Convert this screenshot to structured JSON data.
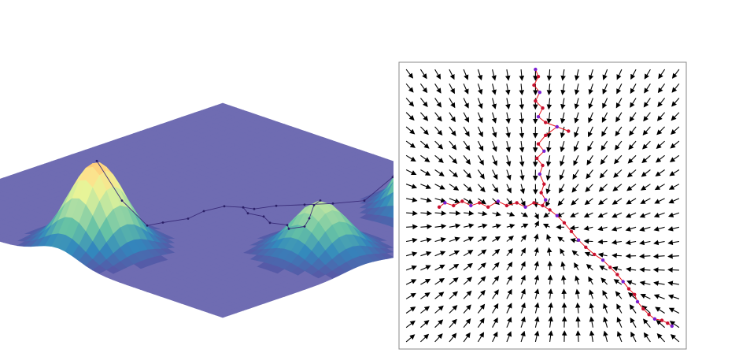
{
  "chart_data": [
    {
      "type": "surface",
      "title": "",
      "colormap": [
        "#5e4fa2",
        "#3288bd",
        "#66c2a5",
        "#abdda4",
        "#e6f598",
        "#fee08b",
        "#fdae61",
        "#f46d43",
        "#d53e4f",
        "#9e0142"
      ],
      "surface_color": "#6f6cb2",
      "grid": false,
      "axes_visible": false,
      "x_range": [
        -1,
        1
      ],
      "y_range": [
        -1,
        1
      ],
      "peaks": [
        {
          "name": "top-left",
          "x": -0.75,
          "y": -0.05,
          "amplitude": 0.62,
          "width": 0.13
        },
        {
          "name": "bottom-left",
          "x": -0.1,
          "y": 0.72,
          "amplitude": 0.38,
          "width": 0.13
        },
        {
          "name": "right",
          "x": 0.7,
          "y": 0.7,
          "amplitude": 1.0,
          "width": 0.13
        }
      ],
      "path": [
        [
          -0.1,
          0.72
        ],
        [
          -0.06,
          0.64
        ],
        [
          -0.02,
          0.57
        ],
        [
          0.02,
          0.5
        ],
        [
          0.0,
          0.42
        ],
        [
          0.05,
          0.36
        ],
        [
          0.02,
          0.28
        ],
        [
          0.06,
          0.2
        ],
        [
          0.04,
          0.12
        ],
        [
          0.08,
          0.05
        ],
        [
          0.03,
          -0.02
        ],
        [
          -0.08,
          -0.04
        ],
        [
          -0.2,
          -0.02
        ],
        [
          -0.32,
          -0.06
        ],
        [
          -0.45,
          -0.03
        ],
        [
          -0.58,
          -0.06
        ],
        [
          -0.75,
          -0.05
        ],
        [
          0.1,
          0.1
        ],
        [
          0.2,
          0.14
        ],
        [
          0.3,
          0.22
        ],
        [
          0.4,
          0.3
        ],
        [
          0.5,
          0.4
        ],
        [
          0.58,
          0.5
        ],
        [
          0.64,
          0.6
        ],
        [
          0.7,
          0.7
        ]
      ]
    },
    {
      "type": "quiver",
      "title": "",
      "xlabel": "",
      "ylabel": "",
      "xlim": [
        -1,
        1
      ],
      "ylim": [
        -1,
        1
      ],
      "grid": false,
      "arrow_color": "#000000",
      "grid_n": 20,
      "attractors": [
        {
          "x": 0.0,
          "y": 0.0
        },
        {
          "x": -0.6,
          "y": 0.0
        },
        {
          "x": 0.75,
          "y": -0.7
        }
      ],
      "trajectory": {
        "line_color": "#e8141b",
        "marker_colors": [
          "#c8102e",
          "#7a1fd0"
        ],
        "points": [
          [
            -0.05,
            0.95
          ],
          [
            -0.03,
            0.9
          ],
          [
            -0.06,
            0.84
          ],
          [
            -0.02,
            0.79
          ],
          [
            -0.05,
            0.73
          ],
          [
            0.0,
            0.68
          ],
          [
            -0.03,
            0.62
          ],
          [
            0.02,
            0.58
          ],
          [
            0.18,
            0.52
          ],
          [
            0.1,
            0.55
          ],
          [
            0.02,
            0.49
          ],
          [
            -0.03,
            0.43
          ],
          [
            0.01,
            0.38
          ],
          [
            -0.04,
            0.33
          ],
          [
            0.0,
            0.28
          ],
          [
            -0.02,
            0.22
          ],
          [
            0.01,
            0.15
          ],
          [
            -0.01,
            0.09
          ],
          [
            0.02,
            0.04
          ],
          [
            0.0,
            0.0
          ],
          [
            -0.06,
            0.02
          ],
          [
            -0.12,
            -0.01
          ],
          [
            -0.18,
            0.02
          ],
          [
            -0.25,
            0.0
          ],
          [
            -0.31,
            0.03
          ],
          [
            -0.38,
            -0.01
          ],
          [
            -0.44,
            0.02
          ],
          [
            -0.5,
            0.0
          ],
          [
            -0.56,
            0.03
          ],
          [
            -0.62,
            0.0
          ],
          [
            -0.68,
            0.02
          ],
          [
            -0.72,
            -0.01
          ],
          [
            0.05,
            -0.03
          ],
          [
            0.1,
            -0.07
          ],
          [
            0.15,
            -0.12
          ],
          [
            0.2,
            -0.18
          ],
          [
            0.25,
            -0.24
          ],
          [
            0.3,
            -0.29
          ],
          [
            0.36,
            -0.34
          ],
          [
            0.42,
            -0.38
          ],
          [
            0.47,
            -0.43
          ],
          [
            0.52,
            -0.48
          ],
          [
            0.56,
            -0.53
          ],
          [
            0.6,
            -0.58
          ],
          [
            0.64,
            -0.62
          ],
          [
            0.66,
            -0.67
          ],
          [
            0.7,
            -0.72
          ],
          [
            0.74,
            -0.76
          ],
          [
            0.78,
            -0.79
          ],
          [
            0.83,
            -0.8
          ],
          [
            0.87,
            -0.82
          ],
          [
            0.9,
            -0.84
          ]
        ]
      }
    }
  ]
}
